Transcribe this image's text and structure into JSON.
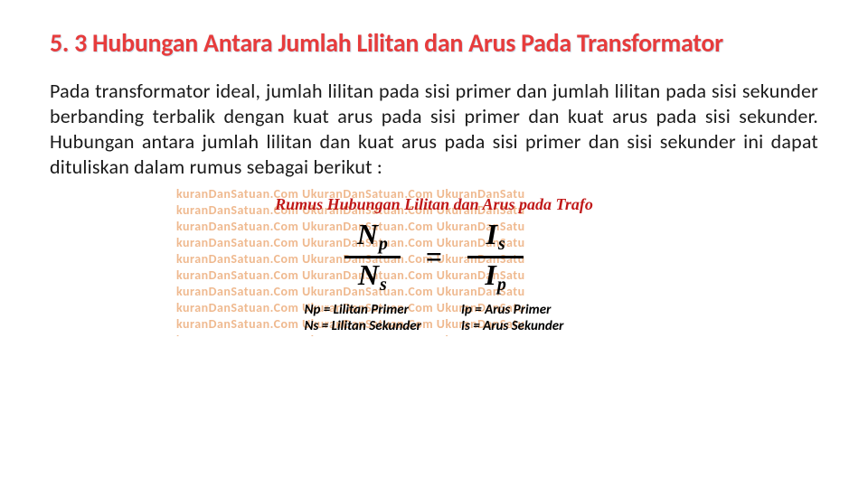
{
  "title": "5. 3 Hubungan Antara Jumlah Lilitan dan Arus Pada Transformator",
  "paragraph": "Pada transformator ideal, jumlah lilitan pada sisi primer dan jumlah lilitan pada sisi sekunder berbanding terbalik dengan kuat arus pada sisi primer dan kuat arus pada sisi sekunder. Hubungan antara jumlah lilitan dan kuat arus pada sisi primer dan sisi sekunder ini dapat dituliskan dalam rumus sebagai berikut :",
  "formula": {
    "title": "Rumus Hubungan Lilitan dan Arus pada Trafo",
    "left_num": "N",
    "left_num_sub": "p",
    "left_den": "N",
    "left_den_sub": "s",
    "right_num": "I",
    "right_num_sub": "s",
    "right_den": "I",
    "right_den_sub": "p",
    "eq": "="
  },
  "legend": {
    "np": "Np = Lilitan Primer",
    "ns": "Ns = Lilitan Sekunder",
    "ip": "Ip = Arus Primer",
    "is": "Is = Arus Sekunder"
  },
  "watermark_unit": "kuranDanSatuan.Com UkuranDanSatuan.Com UkuranDanSatu",
  "colors": {
    "title": "#e73c3c",
    "formula_title": "#c01818",
    "watermark": "#efb98f",
    "text": "#1a1a1a",
    "bg": "#ffffff"
  }
}
